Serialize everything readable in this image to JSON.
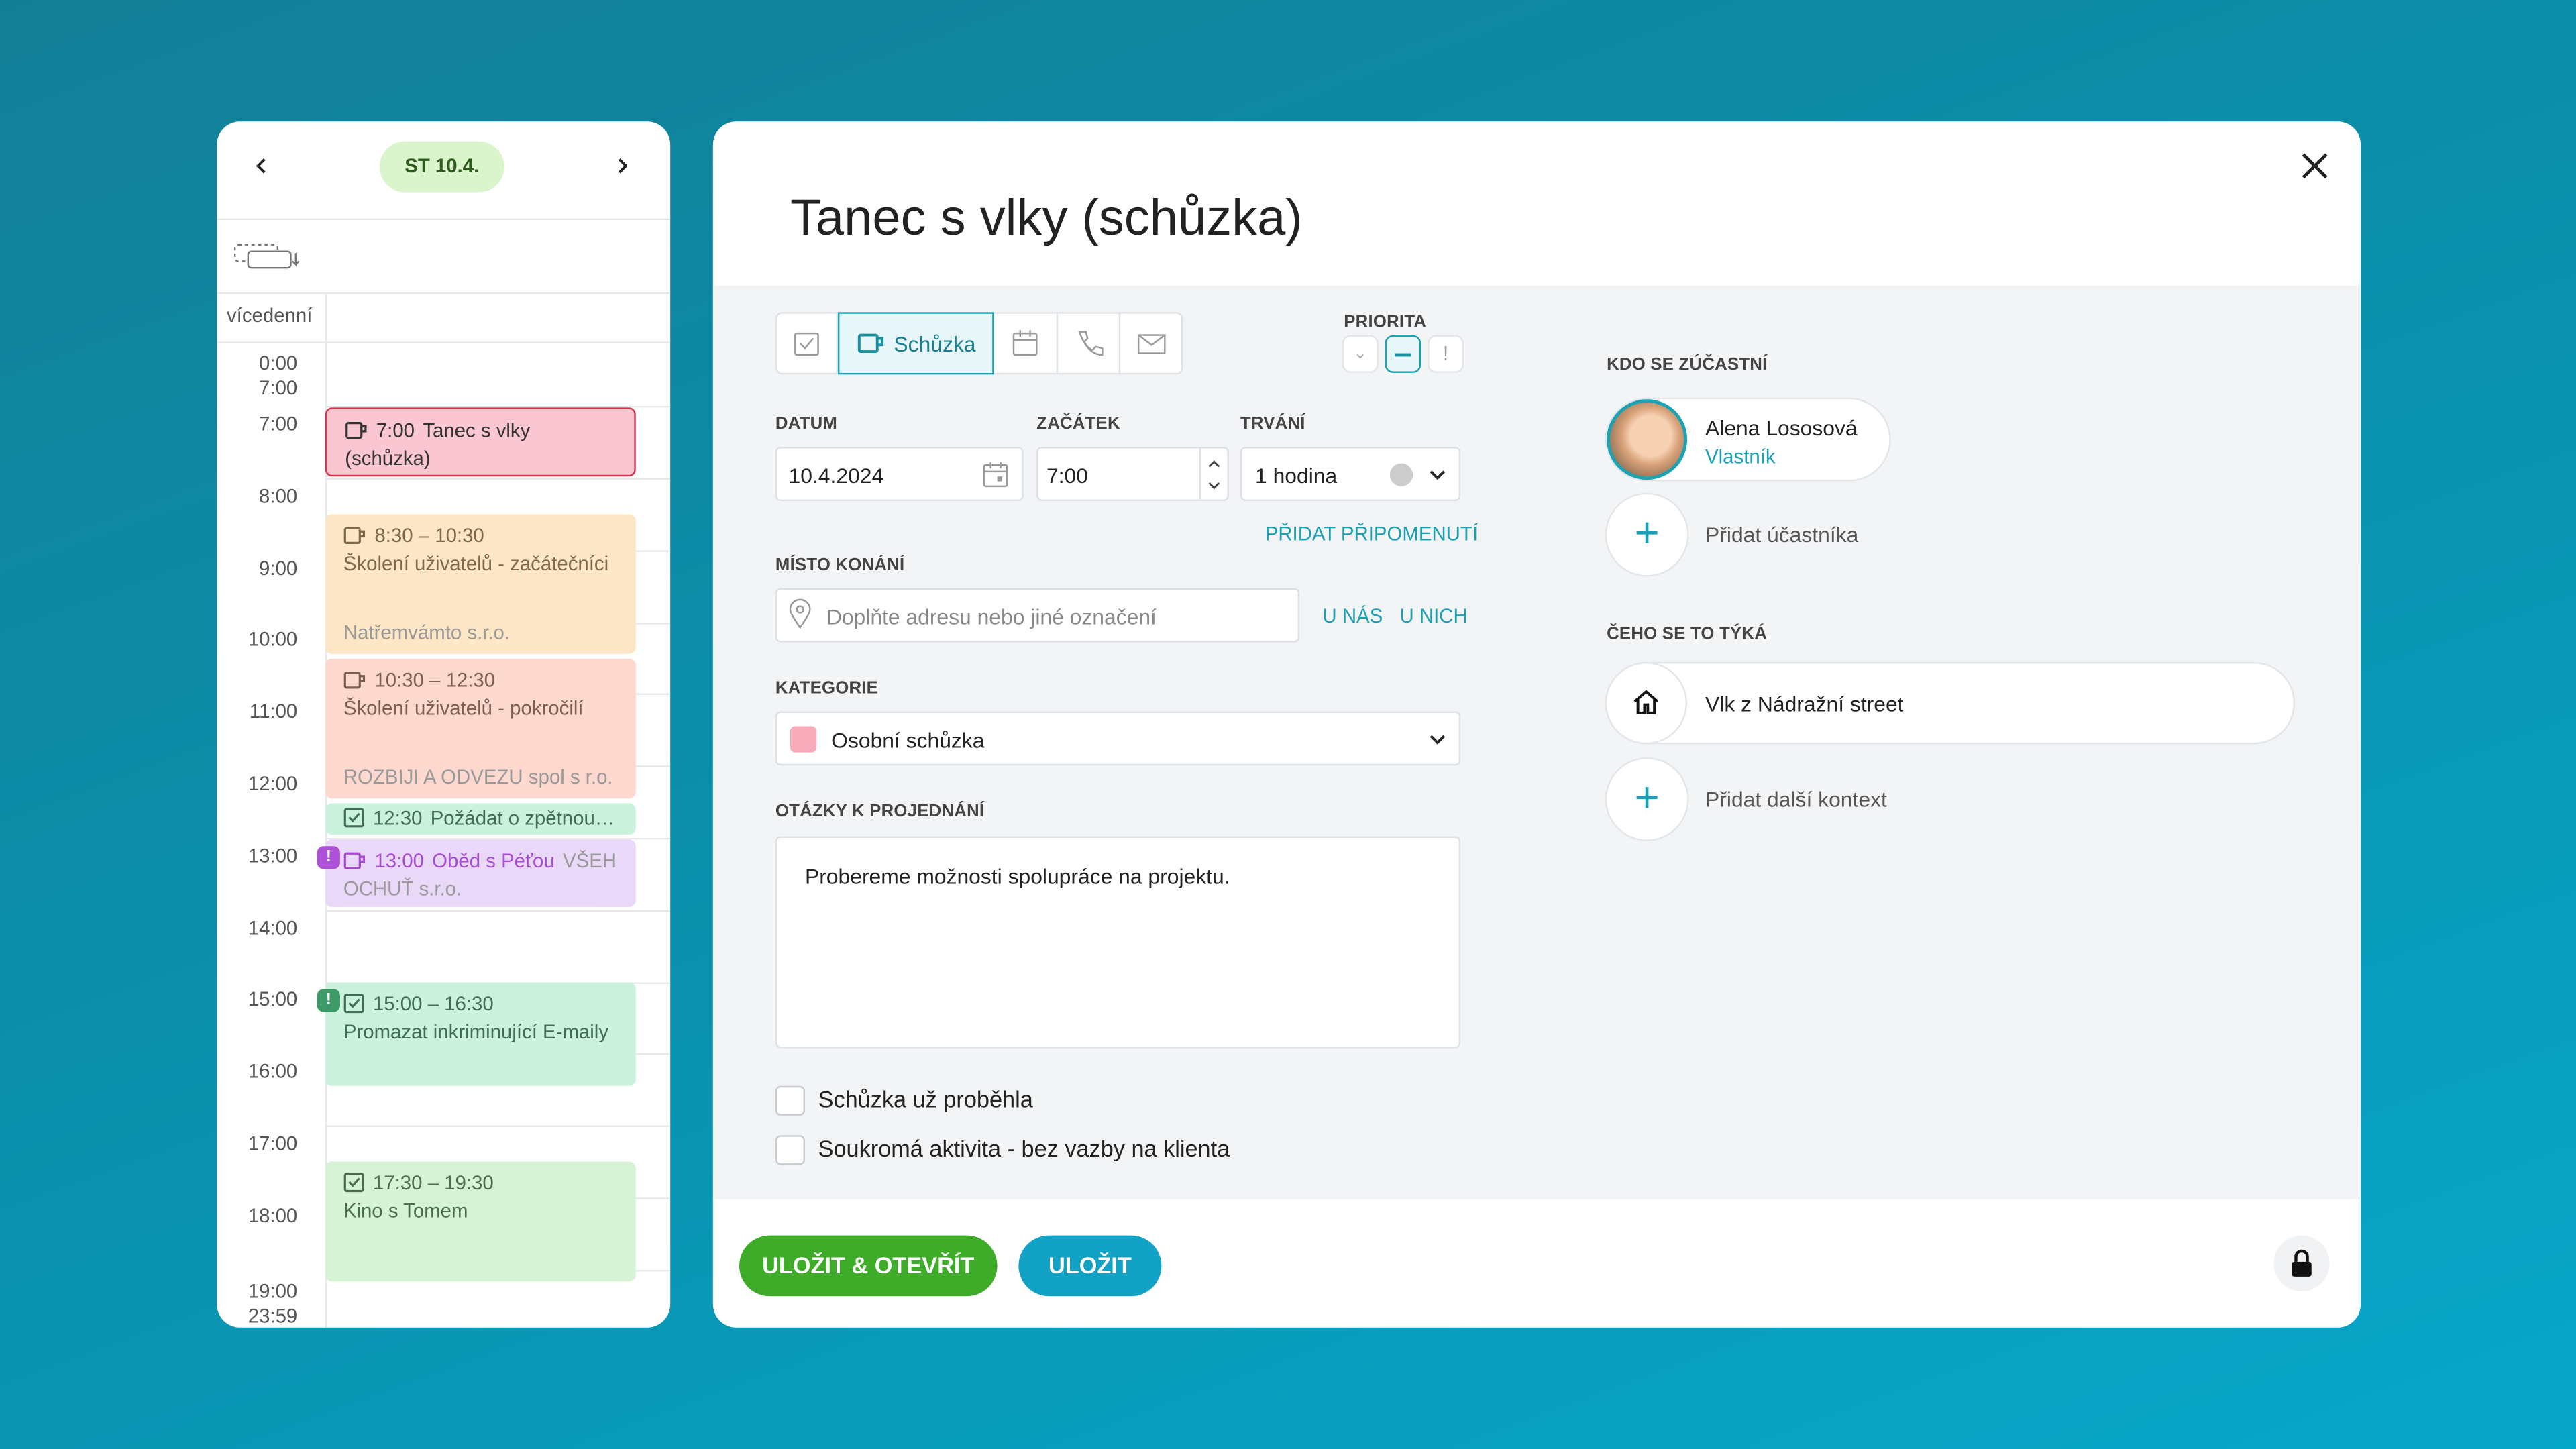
{
  "calendar": {
    "date": "ST 10.4.",
    "all_day_label": "vícedenní",
    "collapsed_start": [
      "0:00",
      "7:00"
    ],
    "hours": [
      "7:00",
      "8:00",
      "9:00",
      "10:00",
      "11:00",
      "12:00",
      "13:00",
      "14:00",
      "15:00",
      "16:00",
      "17:00",
      "18:00"
    ],
    "collapsed_end": [
      "19:00",
      "23:59"
    ],
    "events": [
      {
        "time": "7:00",
        "title": "Tanec s vlky (schůzka)"
      },
      {
        "time": "8:30 – 10:30",
        "title": "Školení uživatelů - začátečníci",
        "company": "Natřemvámto s.r.o."
      },
      {
        "time": "10:30 – 12:30",
        "title": "Školení uživatelů - pokročilí",
        "company": "ROZBIJI A ODVEZU spol s r.o."
      },
      {
        "time": "12:30",
        "title": "Požádat o zpětnou…"
      },
      {
        "time": "13:00",
        "title": "Oběd s Péťou",
        "company": "VŠEHOCHUŤ s.r.o."
      },
      {
        "time": "15:00 – 16:30",
        "title": "Promazat inkriminující E-maily"
      },
      {
        "time": "17:30 – 19:30",
        "title": "Kino s Tomem"
      }
    ]
  },
  "form": {
    "title": "Tanec s vlky (schůzka)",
    "active_type": "Schůzka",
    "priority_label": "PRIORITA",
    "date_label": "DATUM",
    "date": "10.4.2024",
    "start_label": "ZAČÁTEK",
    "start": "7:00",
    "duration_label": "TRVÁNÍ",
    "duration": "1 hodina",
    "add_reminder": "PŘIDAT PŘIPOMENUTÍ",
    "place_label": "MÍSTO KONÁNÍ",
    "place_placeholder": "Doplňte adresu nebo jiné označení",
    "place_ours": "U NÁS",
    "place_theirs": "U NICH",
    "category_label": "KATEGORIE",
    "category": "Osobní schůzka",
    "topics_label": "OTÁZKY K PROJEDNÁNÍ",
    "topics": "Probereme možnosti spolupráce na projektu.",
    "checkboxes": [
      "Schůzka už proběhla",
      "Soukromá aktivita - bez vazby na klienta"
    ],
    "save_open": "ULOŽIT & OTEVŘÍT",
    "save": "ULOŽIT"
  },
  "participants": {
    "label": "KDO SE ZÚČASTNÍ",
    "name": "Alena Lososová",
    "role": "Vlastník",
    "add": "Přidat účastníka"
  },
  "context": {
    "label": "ČEHO SE TO TÝKÁ",
    "item": "Vlk z Nádražní street",
    "add": "Přidat další kontext"
  }
}
